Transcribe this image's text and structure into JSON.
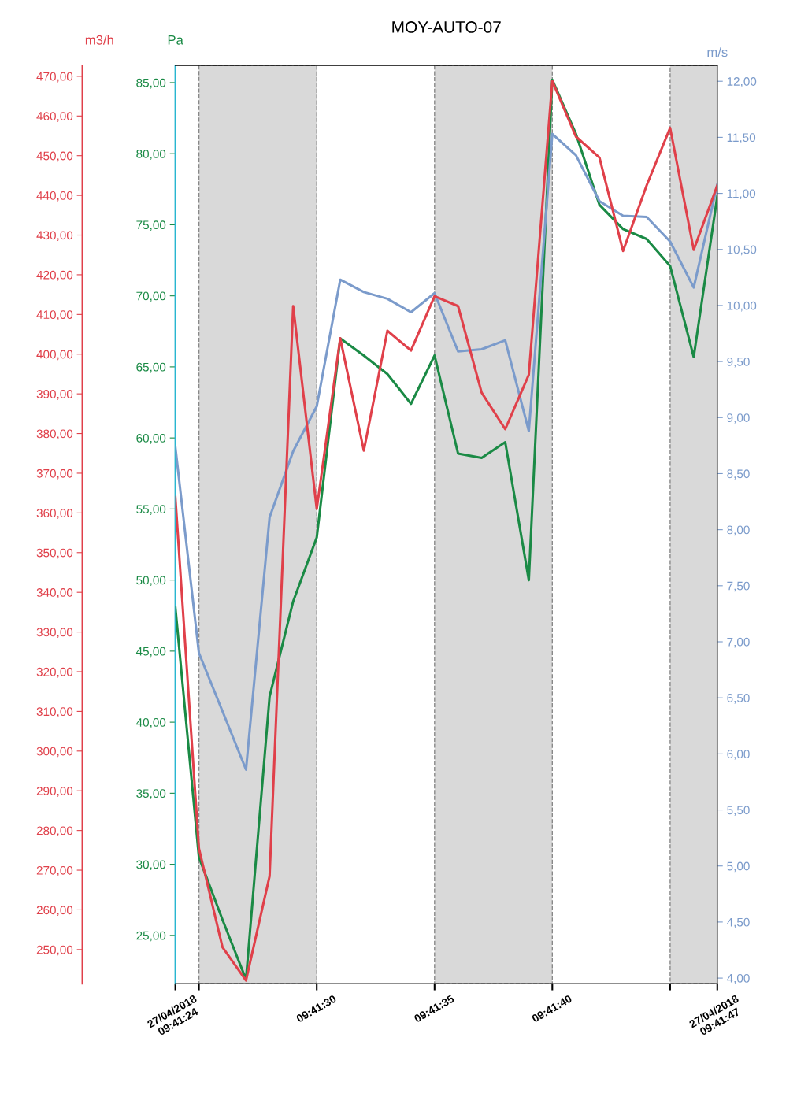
{
  "chart_data": {
    "type": "line",
    "title": "MOY-AUTO-07",
    "x": [
      9.69,
      9.690278,
      9.690556,
      9.690833,
      9.691111,
      9.691389,
      9.691667,
      9.691944,
      9.692222,
      9.6925,
      9.692778,
      9.693056,
      9.693333,
      9.693611,
      9.693889,
      9.694167,
      9.694444,
      9.694722,
      9.695,
      9.695278,
      9.695556,
      9.695833,
      9.696111,
      9.696389
    ],
    "xlim": [
      9.69,
      9.696389
    ],
    "xticks": [
      {
        "value": 9.69,
        "label": "27/04/2018\n09:41:24"
      },
      {
        "value": 9.690278,
        "label": null
      },
      {
        "value": 9.691667,
        "label": "09:41:30"
      },
      {
        "value": 9.693056,
        "label": "09:41:35"
      },
      {
        "value": 9.694444,
        "label": "09:41:40"
      },
      {
        "value": 9.695833,
        "label": null
      },
      {
        "value": 9.696389,
        "label": "27/04/2018\n09:41:47"
      }
    ],
    "ylabel": "Pa",
    "ylim": [
      21.6,
      86.2
    ],
    "yticks": [
      {
        "value": 25,
        "label": "25,00"
      },
      {
        "value": 30,
        "label": "30,00"
      },
      {
        "value": 35,
        "label": "35,00"
      },
      {
        "value": 40,
        "label": "40,00"
      },
      {
        "value": 45,
        "label": "45,00"
      },
      {
        "value": 50,
        "label": "50,00"
      },
      {
        "value": 55,
        "label": "55,00"
      },
      {
        "value": 60,
        "label": "60,00"
      },
      {
        "value": 65,
        "label": "65,00"
      },
      {
        "value": 70,
        "label": "70,00"
      },
      {
        "value": 75,
        "label": "75,00"
      },
      {
        "value": 80,
        "label": "80,00"
      },
      {
        "value": 85,
        "label": "85,00"
      }
    ],
    "y2label": "m/s",
    "y2lim": [
      3.95,
      12.14
    ],
    "y2ticks": [
      {
        "value": 4,
        "label": "4,00"
      },
      {
        "value": 4.5,
        "label": "4,50"
      },
      {
        "value": 5,
        "label": "5,00"
      },
      {
        "value": 5.5,
        "label": "5,50"
      },
      {
        "value": 6,
        "label": "6,00"
      },
      {
        "value": 6.5,
        "label": "6,50"
      },
      {
        "value": 7,
        "label": "7,00"
      },
      {
        "value": 7.5,
        "label": "7,50"
      },
      {
        "value": 8,
        "label": "8,00"
      },
      {
        "value": 8.5,
        "label": "8,50"
      },
      {
        "value": 9,
        "label": "9,00"
      },
      {
        "value": 9.5,
        "label": "9,50"
      },
      {
        "value": 10,
        "label": "10,00"
      },
      {
        "value": 10.5,
        "label": "10,50"
      },
      {
        "value": 11,
        "label": "11,00"
      },
      {
        "value": 11.5,
        "label": "11,50"
      },
      {
        "value": 12,
        "label": "12,00"
      }
    ],
    "y3label": "m3/h",
    "y3lim": [
      241.4,
      472.7
    ],
    "y3ticks": [
      {
        "value": 250,
        "label": "250,00"
      },
      {
        "value": 260,
        "label": "260,00"
      },
      {
        "value": 270,
        "label": "270,00"
      },
      {
        "value": 280,
        "label": "280,00"
      },
      {
        "value": 290,
        "label": "290,00"
      },
      {
        "value": 300,
        "label": "300,00"
      },
      {
        "value": 310,
        "label": "310,00"
      },
      {
        "value": 320,
        "label": "320,00"
      },
      {
        "value": 330,
        "label": "330,00"
      },
      {
        "value": 340,
        "label": "340,00"
      },
      {
        "value": 350,
        "label": "350,00"
      },
      {
        "value": 360,
        "label": "360,00"
      },
      {
        "value": 370,
        "label": "370,00"
      },
      {
        "value": 380,
        "label": "380,00"
      },
      {
        "value": 390,
        "label": "390,00"
      },
      {
        "value": 400,
        "label": "400,00"
      },
      {
        "value": 410,
        "label": "410,00"
      },
      {
        "value": 420,
        "label": "420,00"
      },
      {
        "value": 430,
        "label": "430,00"
      },
      {
        "value": 440,
        "label": "440,00"
      },
      {
        "value": 450,
        "label": "450,00"
      },
      {
        "value": 460,
        "label": "460,00"
      },
      {
        "value": 470,
        "label": "470,00"
      }
    ],
    "series": [
      {
        "color": "#e0404a",
        "axis": "y3",
        "values": [
          364,
          275.5,
          250.6,
          242.2,
          268.5,
          412.1,
          361,
          404,
          375.7,
          405.9,
          400.9,
          414.6,
          412.1,
          390.3,
          381.1,
          394.8,
          468.8,
          454.8,
          449.5,
          426,
          442.5,
          457,
          426.3,
          442.5
        ]
      },
      {
        "color": "#1a8a45",
        "axis": "y",
        "values": [
          48.1,
          30.5,
          26.1,
          21.9,
          41.8,
          48.5,
          53.0,
          67.0,
          65.8,
          64.5,
          62.4,
          65.8,
          58.9,
          58.6,
          59.7,
          50.0,
          85.2,
          81.4,
          76.4,
          74.7,
          74.0,
          72.1,
          65.7,
          77.0
        ]
      },
      {
        "color": "#7b9bcb",
        "axis": "y2",
        "values": [
          8.74,
          6.9,
          6.38,
          5.86,
          8.11,
          8.7,
          9.1,
          10.23,
          10.12,
          10.06,
          9.94,
          10.11,
          9.59,
          9.61,
          9.69,
          8.88,
          11.53,
          11.34,
          10.93,
          10.8,
          10.79,
          10.57,
          10.16,
          11.08
        ]
      }
    ],
    "bands": [
      {
        "axis": "x",
        "from": 9.690278,
        "to": 9.691667,
        "color": "#d9d9d9"
      },
      {
        "axis": "x",
        "from": 9.693056,
        "to": 9.694444,
        "color": "#d9d9d9"
      },
      {
        "axis": "x",
        "from": 9.695833,
        "to": 9.696389,
        "color": "#d9d9d9"
      }
    ],
    "grid": false,
    "marker": "none",
    "line_style": "solid"
  }
}
